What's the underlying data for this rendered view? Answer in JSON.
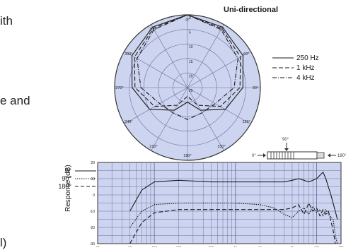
{
  "page_fragments": [
    "ith",
    "e and",
    "l)"
  ],
  "chart_data": [
    {
      "type": "polar",
      "title": "Uni-directional",
      "angle_labels": [
        "0°",
        "30°",
        "60°",
        "90°",
        "120°",
        "150°",
        "180°",
        "210°",
        "240°",
        "270°",
        "300°",
        "330°"
      ],
      "radial_labels": [
        "0",
        "5",
        "10",
        "15",
        "20",
        "25"
      ],
      "legend": [
        {
          "label": "250 Hz",
          "style": "solid"
        },
        {
          "label": "1 kHz",
          "style": "dashed"
        },
        {
          "label": "4 kHz",
          "style": "dashdot"
        }
      ],
      "series": [
        {
          "name": "250 Hz",
          "angles": [
            0,
            30,
            60,
            90,
            120,
            150,
            180,
            210,
            240,
            270,
            300,
            330,
            360
          ],
          "values": [
            0,
            -1,
            -3,
            -6,
            -10,
            -16,
            -20,
            -16,
            -10,
            -6,
            -3,
            -1,
            0
          ]
        },
        {
          "name": "1 kHz",
          "angles": [
            0,
            30,
            60,
            90,
            120,
            150,
            180,
            210,
            240,
            270,
            300,
            330,
            360
          ],
          "values": [
            0,
            -1.5,
            -4,
            -7,
            -12,
            -18,
            -22,
            -18,
            -12,
            -7,
            -4,
            -1.5,
            0
          ]
        },
        {
          "name": "4 kHz",
          "angles": [
            0,
            30,
            60,
            90,
            120,
            150,
            180,
            210,
            240,
            270,
            300,
            330,
            360
          ],
          "values": [
            0,
            -2,
            -5,
            -9,
            -14,
            -15,
            -14,
            -15,
            -14,
            -9,
            -5,
            -2,
            0
          ]
        }
      ],
      "rlim": [
        -25,
        0
      ]
    },
    {
      "type": "diagram",
      "labels": {
        "top": "90°",
        "left": "0°",
        "right": "180°"
      }
    },
    {
      "type": "line",
      "ylabel": "Response (dB)",
      "xscale": "log",
      "xlim": [
        20,
        20000
      ],
      "ylim": [
        -30,
        20
      ],
      "yticks": [
        20,
        10,
        0,
        -10,
        -20,
        -30
      ],
      "xticks": [
        20,
        50,
        100,
        200,
        500,
        1000,
        2000,
        5000,
        10000,
        20000
      ],
      "xtick_labels": [
        "20",
        "50",
        "100",
        "200",
        "500",
        "1k",
        "2k",
        "5k",
        "10k",
        "20k"
      ],
      "legend": [
        {
          "label": "0°",
          "style": "solid"
        },
        {
          "label": "90°",
          "style": "dotted"
        },
        {
          "label": "180°",
          "style": "dashed"
        }
      ],
      "series": [
        {
          "name": "0°",
          "x": [
            50,
            70,
            100,
            200,
            500,
            1000,
            2000,
            4000,
            5000,
            6000,
            7000,
            8000,
            10000,
            12000,
            13000,
            15000,
            17000,
            18000
          ],
          "y": [
            -10,
            3,
            8,
            9,
            8,
            8,
            8,
            8,
            9,
            10,
            9,
            8,
            10,
            14,
            10,
            0,
            -10,
            -15
          ]
        },
        {
          "name": "90°",
          "x": [
            50,
            70,
            100,
            200,
            500,
            1000,
            2000,
            3000,
            4000,
            5000,
            6000,
            7000,
            8000,
            9000,
            10000,
            11000,
            12000,
            13000,
            14000,
            16000,
            17000,
            18000
          ],
          "y": [
            -20,
            -10,
            -6,
            -5,
            -5,
            -5,
            -6,
            -8,
            -12,
            -14,
            -10,
            -8,
            -12,
            -7,
            -11,
            -9,
            -13,
            -9,
            -12,
            -15,
            -25,
            -30
          ]
        },
        {
          "name": "180°",
          "x": [
            50,
            70,
            100,
            200,
            500,
            1000,
            2000,
            4000,
            5000,
            6000,
            7000,
            8000,
            9000,
            10000,
            11000,
            12000,
            13000,
            14000,
            15000,
            16000,
            17000
          ],
          "y": [
            -30,
            -17,
            -11,
            -9,
            -9,
            -9,
            -9,
            -9,
            -8,
            -6,
            -12,
            -5,
            -10,
            -8,
            -13,
            -9,
            -12,
            -10,
            -16,
            -22,
            -30
          ]
        }
      ],
      "grid": true,
      "background": "#cdd4ef"
    }
  ],
  "colors": {
    "grid_line": "#6b6fa0",
    "trace": "#1a1a1a"
  }
}
